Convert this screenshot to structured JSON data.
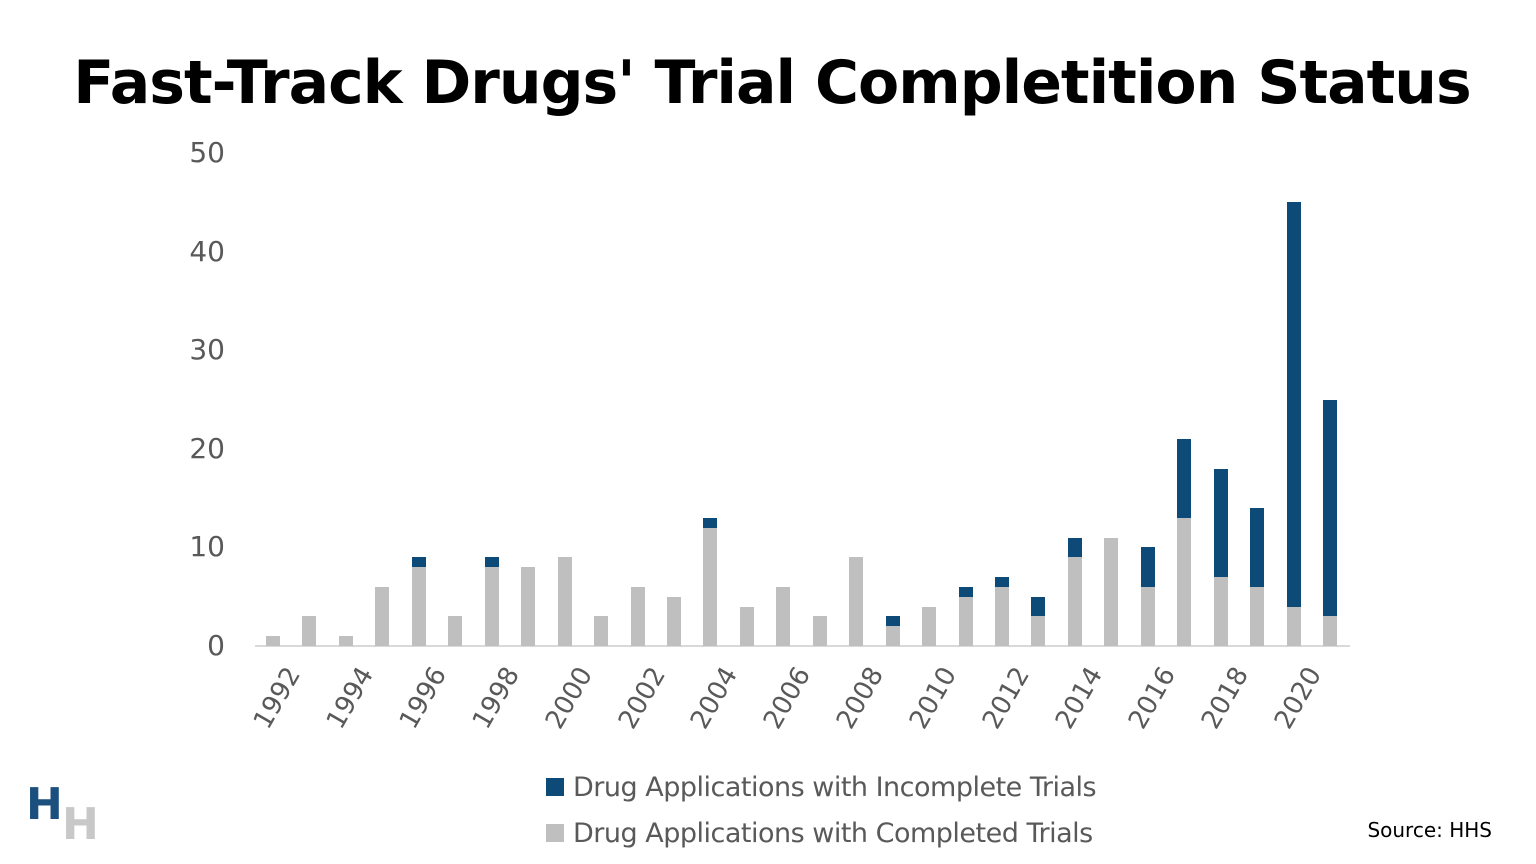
{
  "title": "Fast-Track Drugs' Trial Completition Status",
  "source": "Source: HHS",
  "logo": {
    "letter1": "H",
    "letter2": "H"
  },
  "colors": {
    "incomplete": "#0d4a78",
    "complete": "#bfbfbf",
    "axis": "#d9d9d9",
    "tick_text": "#595959"
  },
  "legend": [
    {
      "label": "Drug Applications with Incomplete Trials",
      "color": "#0d4a78"
    },
    {
      "label": "Drug Applications with Completed Trials",
      "color": "#bfbfbf"
    }
  ],
  "chart_data": {
    "type": "bar",
    "stacked": true,
    "title": "Fast-Track Drugs' Trial Completition Status",
    "xlabel": "",
    "ylabel": "",
    "ylim": [
      0,
      50
    ],
    "yticks": [
      0,
      10,
      20,
      30,
      40,
      50
    ],
    "grid": false,
    "legend_position": "bottom",
    "categories": [
      "1992",
      "1993",
      "1994",
      "1995",
      "1996",
      "1997",
      "1998",
      "1999",
      "2000",
      "2001",
      "2002",
      "2003",
      "2004",
      "2005",
      "2006",
      "2007",
      "2008",
      "2009",
      "2010",
      "2011",
      "2012",
      "2013",
      "2014",
      "2015",
      "2016",
      "2017",
      "2018",
      "2019",
      "2020",
      "2021"
    ],
    "xtick_labels": [
      "1992",
      "1994",
      "1996",
      "1998",
      "2000",
      "2002",
      "2004",
      "2006",
      "2008",
      "2010",
      "2012",
      "2014",
      "2016",
      "2018",
      "2020"
    ],
    "series": [
      {
        "name": "Drug Applications with Completed Trials",
        "color": "#bfbfbf",
        "values": [
          1,
          3,
          1,
          6,
          8,
          3,
          8,
          8,
          9,
          3,
          6,
          5,
          12,
          4,
          6,
          3,
          9,
          2,
          4,
          5,
          6,
          3,
          9,
          11,
          6,
          13,
          7,
          6,
          4,
          3
        ]
      },
      {
        "name": "Drug Applications with Incomplete Trials",
        "color": "#0d4a78",
        "values": [
          0,
          0,
          0,
          0,
          1,
          0,
          1,
          0,
          0,
          0,
          0,
          0,
          1,
          0,
          0,
          0,
          0,
          1,
          0,
          1,
          1,
          2,
          2,
          0,
          4,
          8,
          11,
          8,
          41,
          22
        ]
      }
    ]
  }
}
